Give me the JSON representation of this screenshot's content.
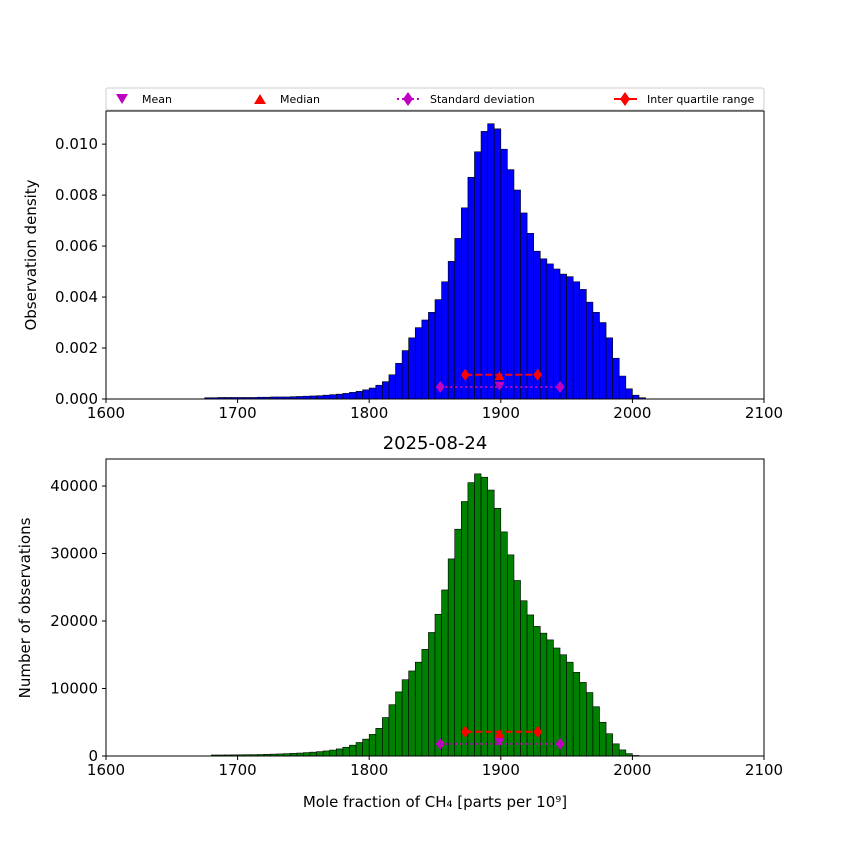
{
  "chart_data": [
    {
      "type": "bar",
      "title": "",
      "xlabel": "",
      "ylabel": "Observation density",
      "xlim": [
        1600,
        2100
      ],
      "ylim": [
        0,
        0.0113
      ],
      "xticks": [
        "1600",
        "1700",
        "1800",
        "1900",
        "2000",
        "2100"
      ],
      "yticks": [
        "0.000",
        "0.002",
        "0.004",
        "0.006",
        "0.008",
        "0.010"
      ],
      "bar_color": "#0000ff",
      "bin_start": 1675,
      "bin_width": 5,
      "values": [
        5e-05,
        5e-05,
        6e-05,
        6e-05,
        6e-05,
        6e-05,
        6e-05,
        6e-05,
        7e-05,
        7e-05,
        8e-05,
        8e-05,
        8e-05,
        9e-05,
        0.0001,
        0.00011,
        0.00012,
        0.00013,
        0.00015,
        0.00017,
        0.00019,
        0.00022,
        0.00026,
        0.0003,
        0.00036,
        0.00043,
        0.00054,
        0.00068,
        0.00095,
        0.0014,
        0.0019,
        0.0024,
        0.0028,
        0.0031,
        0.0034,
        0.0039,
        0.0046,
        0.0054,
        0.0063,
        0.0075,
        0.0087,
        0.0097,
        0.0105,
        0.0108,
        0.0106,
        0.0098,
        0.009,
        0.0082,
        0.0073,
        0.0065,
        0.0058,
        0.0055,
        0.0053,
        0.0051,
        0.0049,
        0.0048,
        0.0046,
        0.0043,
        0.0038,
        0.0034,
        0.003,
        0.0024,
        0.0016,
        0.0009,
        0.0004,
        0.00015,
        5e-05
      ],
      "markers": {
        "mean": {
          "x": 1899,
          "y": 0.00052
        },
        "median": {
          "x": 1899,
          "y": 0.0009
        },
        "std": {
          "x": [
            1854,
            1945
          ],
          "y": 0.00047
        },
        "iqr": {
          "x": [
            1873,
            1928
          ],
          "y": 0.00095
        }
      }
    },
    {
      "type": "bar",
      "title": "2025-08-24",
      "xlabel": "Mole fraction of CH₄ [parts per 10⁹]",
      "ylabel": "Number of observations",
      "xlim": [
        1600,
        2100
      ],
      "ylim": [
        0,
        44000
      ],
      "xticks": [
        "1600",
        "1700",
        "1800",
        "1900",
        "2000",
        "2100"
      ],
      "yticks": [
        "0",
        "10000",
        "20000",
        "30000",
        "40000"
      ],
      "bar_color": "#008000",
      "bin_start": 1680,
      "bin_width": 5,
      "values": [
        150,
        150,
        160,
        170,
        180,
        190,
        200,
        220,
        250,
        280,
        310,
        350,
        390,
        440,
        500,
        570,
        650,
        750,
        880,
        1050,
        1300,
        1600,
        2000,
        2500,
        3200,
        4100,
        5700,
        7600,
        9500,
        11300,
        12600,
        13900,
        15800,
        18300,
        21000,
        24600,
        29200,
        33600,
        37700,
        40500,
        41800,
        41300,
        39400,
        36700,
        33200,
        29800,
        26000,
        23000,
        20900,
        19200,
        18200,
        17200,
        16000,
        15000,
        13900,
        12400,
        10900,
        9400,
        7300,
        5000,
        3300,
        1800,
        900,
        350,
        80
      ],
      "markers": {
        "mean": {
          "x": 1899,
          "y": 2100
        },
        "median": {
          "x": 1899,
          "y": 3300
        },
        "std": {
          "x": [
            1854,
            1945
          ],
          "y": 1800
        },
        "iqr": {
          "x": [
            1873,
            1928
          ],
          "y": 3600
        }
      }
    }
  ],
  "legend": {
    "position": "top",
    "entries": [
      {
        "label": "Mean",
        "marker": "triangle-down",
        "color": "#bf00bf"
      },
      {
        "label": "Median",
        "marker": "triangle-up",
        "color": "#ff0000"
      },
      {
        "label": "Standard deviation",
        "marker": "diamond-dotted",
        "color": "#bf00bf"
      },
      {
        "label": "Inter quartile range",
        "marker": "diamond-solid",
        "color": "#ff0000"
      }
    ]
  },
  "colors": {
    "mean": "#bf00bf",
    "median": "#ff0000",
    "std": "#bf00bf",
    "iqr": "#ff0000"
  }
}
